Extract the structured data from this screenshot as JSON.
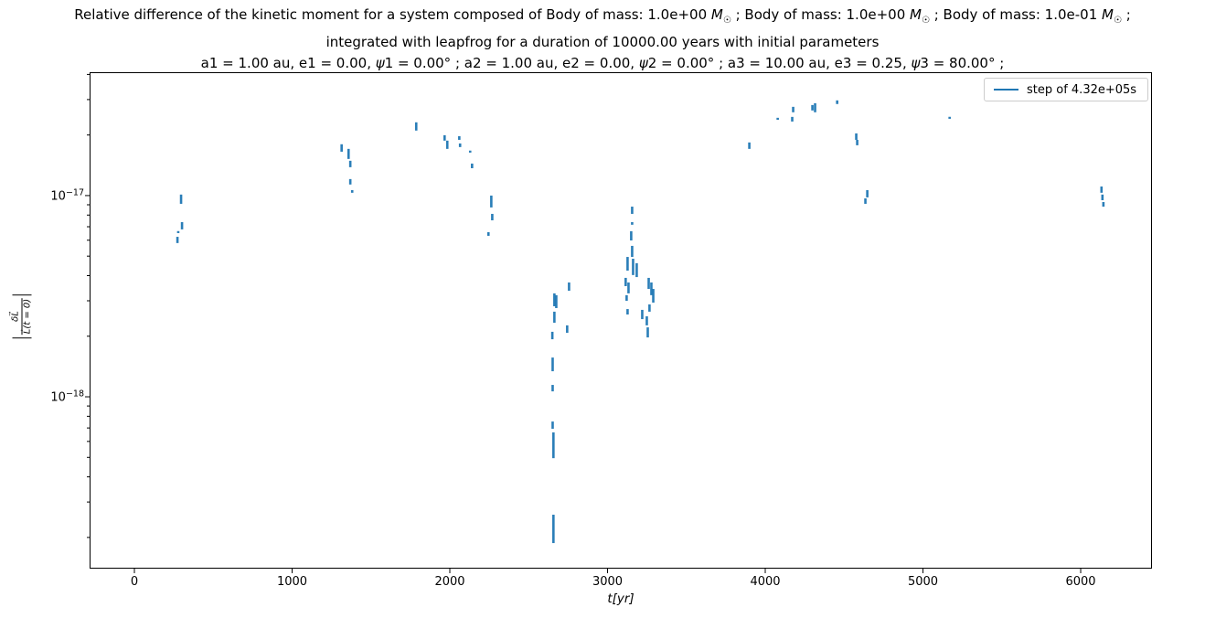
{
  "title": {
    "line1": "Relative difference of the kinetic moment for a system composed of Body of mass: 1.0e+00 M☉ ; Body of mass: 1.0e+00 M☉ ; Body of mass: 1.0e-01 M☉ ;",
    "line2": "integrated with leapfrog for a duration of 10000.00 years with initial parameters",
    "line3": "a1 = 1.00 au, e1 = 0.00, ψ1 = 0.00° ; a2 = 1.00 au, e2 = 0.00, ψ2 = 0.00° ; a3 = 10.00 au, e3 = 0.25, ψ3 = 80.00° ;"
  },
  "legend": {
    "label": "step of 4.32e+05s"
  },
  "axes": {
    "xlabel": "t[yr]",
    "ylabel_numerator": "δL⃗",
    "ylabel_denominator": "L⃗(t = 0)"
  },
  "chart_data": {
    "type": "scatter",
    "title": "Relative difference of the kinetic moment for a system composed of Body of mass: 1.0e+00 M☉ ; Body of mass: 1.0e+00 M☉ ; Body of mass: 1.0e-01 M☉ ; integrated with leapfrog for a duration of 10000.00 years with initial parameters a1 = 1.00 au, e1 = 0.00, ψ1 = 0.00° ; a2 = 1.00 au, e2 = 0.00, ψ2 = 0.00° ; a3 = 10.00 au, e3 = 0.25, ψ3 = 80.00° ;",
    "xlabel": "t[yr]",
    "ylabel": "|δL⃗/L⃗(t=0)|",
    "xlim": [
      -284,
      6452
    ],
    "ylim_log10": [
      -18.854,
      -16.387
    ],
    "x_ticks": [
      0,
      1000,
      2000,
      3000,
      4000,
      5000,
      6000
    ],
    "y_major_tick_exponents": [
      -17,
      -18
    ],
    "grid": false,
    "legend_position": "upper right",
    "marker_color": "#1f77b4",
    "segments_format": "[t_years, log10_value_top, log10_value_bottom] — vertical streaks of scatter points",
    "series": [
      {
        "name": "step of 4.32e+05s",
        "segments": [
          [
            296,
            -16.995,
            -17.041
          ],
          [
            302,
            -17.132,
            -17.168
          ],
          [
            278,
            -17.177,
            -17.186
          ],
          [
            273,
            -17.205,
            -17.236
          ],
          [
            1314,
            -16.745,
            -16.782
          ],
          [
            1358,
            -16.768,
            -16.818
          ],
          [
            1369,
            -16.827,
            -16.859
          ],
          [
            1369,
            -16.918,
            -16.945
          ],
          [
            1381,
            -16.973,
            -16.986
          ],
          [
            1787,
            -16.636,
            -16.677
          ],
          [
            1967,
            -16.7,
            -16.727
          ],
          [
            1984,
            -16.727,
            -16.768
          ],
          [
            2060,
            -16.705,
            -16.723
          ],
          [
            2065,
            -16.741,
            -16.759
          ],
          [
            2129,
            -16.777,
            -16.786
          ],
          [
            2141,
            -16.841,
            -16.864
          ],
          [
            2263,
            -17.0,
            -17.059
          ],
          [
            2269,
            -17.091,
            -17.123
          ],
          [
            2245,
            -17.182,
            -17.2
          ],
          [
            2663,
            -17.486,
            -17.55
          ],
          [
            2675,
            -17.495,
            -17.559
          ],
          [
            2663,
            -17.577,
            -17.632
          ],
          [
            2650,
            -17.677,
            -17.714
          ],
          [
            2652,
            -17.805,
            -17.873
          ],
          [
            2652,
            -17.941,
            -17.973
          ],
          [
            2652,
            -18.123,
            -18.159
          ],
          [
            2657,
            -18.177,
            -18.305
          ],
          [
            2657,
            -18.586,
            -18.727
          ],
          [
            2756,
            -17.432,
            -17.473
          ],
          [
            2744,
            -17.645,
            -17.682
          ],
          [
            3156,
            -17.055,
            -17.091
          ],
          [
            3156,
            -17.132,
            -17.145
          ],
          [
            3150,
            -17.177,
            -17.223
          ],
          [
            3156,
            -17.25,
            -17.305
          ],
          [
            3127,
            -17.305,
            -17.373
          ],
          [
            3162,
            -17.314,
            -17.395
          ],
          [
            3185,
            -17.336,
            -17.405
          ],
          [
            3115,
            -17.409,
            -17.45
          ],
          [
            3133,
            -17.432,
            -17.486
          ],
          [
            3121,
            -17.495,
            -17.523
          ],
          [
            3127,
            -17.564,
            -17.591
          ],
          [
            3261,
            -17.409,
            -17.464
          ],
          [
            3278,
            -17.432,
            -17.495
          ],
          [
            3290,
            -17.464,
            -17.532
          ],
          [
            3266,
            -17.541,
            -17.577
          ],
          [
            3220,
            -17.568,
            -17.614
          ],
          [
            3249,
            -17.6,
            -17.645
          ],
          [
            3255,
            -17.655,
            -17.705
          ],
          [
            3899,
            -16.736,
            -16.768
          ],
          [
            4079,
            -16.614,
            -16.623
          ],
          [
            4177,
            -16.559,
            -16.586
          ],
          [
            4171,
            -16.609,
            -16.632
          ],
          [
            4299,
            -16.55,
            -16.577
          ],
          [
            4316,
            -16.541,
            -16.586
          ],
          [
            4456,
            -16.527,
            -16.545
          ],
          [
            4577,
            -16.691,
            -16.723
          ],
          [
            4583,
            -16.723,
            -16.75
          ],
          [
            4647,
            -16.973,
            -17.009
          ],
          [
            4635,
            -17.014,
            -17.041
          ],
          [
            5169,
            -16.609,
            -16.618
          ],
          [
            6132,
            -16.955,
            -16.986
          ],
          [
            6138,
            -16.995,
            -17.023
          ],
          [
            6144,
            -17.032,
            -17.055
          ]
        ]
      }
    ]
  }
}
